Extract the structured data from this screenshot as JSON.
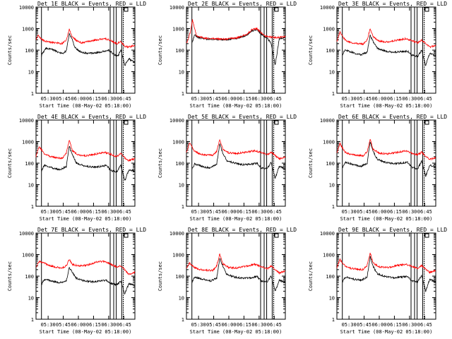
{
  "ylabel": "Counts/sec",
  "xlabel_prefix": "Start Time (08-May-02 05:18:00)",
  "x_ticks": [
    "05:30",
    "05:45",
    "06:00",
    "06:15",
    "06:30",
    "06:45"
  ],
  "y_ticks": [
    "1",
    "10",
    "100",
    "1000",
    "10000"
  ],
  "colors": {
    "events": "#000000",
    "lld": "#ff0000"
  },
  "chart_data": [
    {
      "type": "line",
      "title": "Det 1E BLACK = Events, RED = LLD",
      "ylim": [
        1,
        10000
      ],
      "yscale": "log",
      "xlabel": "Start Time (08-May-02 05:18:00)",
      "ylabel": "Counts/sec",
      "x_time_start": "05:18",
      "x_time_end": "06:56",
      "series": [
        {
          "name": "Events",
          "color": "#000000",
          "t": [
            5.4,
            6,
            10,
            15,
            18,
            22,
            26,
            30,
            33,
            36,
            38,
            40,
            45,
            52,
            60,
            68,
            72,
            78,
            80,
            82,
            84,
            88,
            92,
            96,
            98
          ],
          "values": [
            50,
            70,
            120,
            110,
            100,
            80,
            70,
            90,
            600,
            300,
            150,
            110,
            80,
            70,
            75,
            90,
            100,
            60,
            55,
            60,
            110,
            20,
            40,
            30,
            25
          ]
        },
        {
          "name": "LLD",
          "color": "#ff0000",
          "t": [
            0,
            2,
            6,
            10,
            15,
            20,
            26,
            30,
            33,
            36,
            40,
            45,
            52,
            60,
            68,
            72,
            76,
            80,
            84,
            88,
            92,
            96,
            98
          ],
          "values": [
            300,
            500,
            300,
            250,
            230,
            220,
            200,
            300,
            900,
            400,
            280,
            220,
            250,
            300,
            350,
            300,
            250,
            200,
            250,
            150,
            140,
            160,
            170
          ]
        }
      ]
    },
    {
      "type": "line",
      "title": "Det 2E BLACK = Events, RED = LLD",
      "ylim": [
        1,
        10000
      ],
      "yscale": "log",
      "xlabel": "Start Time (08-May-02 05:18:00)",
      "ylabel": "Counts/sec",
      "x_time_start": "05:18",
      "x_time_end": "06:56",
      "series": [
        {
          "name": "Events",
          "color": "#000000",
          "t": [
            5.4,
            8,
            12,
            20,
            30,
            40,
            50,
            60,
            65,
            70,
            72,
            78,
            80,
            84,
            88,
            92,
            96,
            98
          ],
          "values": [
            200,
            500,
            380,
            330,
            310,
            310,
            350,
            500,
            800,
            900,
            700,
            400,
            380,
            200,
            20,
            350,
            370,
            380
          ]
        },
        {
          "name": "LLD",
          "color": "#ff0000",
          "t": [
            0,
            4,
            6,
            10,
            20,
            30,
            40,
            50,
            60,
            65,
            70,
            72,
            78,
            82,
            88,
            92,
            96,
            98
          ],
          "values": [
            200,
            700,
            2500,
            450,
            350,
            330,
            330,
            370,
            550,
            900,
            1000,
            800,
            450,
            420,
            380,
            400,
            410,
            420
          ]
        }
      ]
    },
    {
      "type": "line",
      "title": "Det 3E BLACK = Events, RED = LLD",
      "ylim": [
        1,
        10000
      ],
      "yscale": "log",
      "xlabel": "Start Time (08-May-02 05:18:00)",
      "ylabel": "Counts/sec",
      "x_time_start": "05:18",
      "x_time_end": "06:56",
      "series": [
        {
          "name": "Events",
          "color": "#000000",
          "t": [
            5.4,
            8,
            12,
            18,
            24,
            30,
            33,
            36,
            40,
            48,
            56,
            64,
            70,
            74,
            80,
            84,
            88,
            92,
            96,
            98
          ],
          "values": [
            60,
            100,
            90,
            70,
            60,
            80,
            500,
            250,
            120,
            90,
            80,
            85,
            90,
            60,
            50,
            100,
            20,
            70,
            60,
            50
          ]
        },
        {
          "name": "LLD",
          "color": "#ff0000",
          "t": [
            0,
            3,
            8,
            14,
            20,
            26,
            30,
            33,
            36,
            42,
            50,
            60,
            68,
            74,
            80,
            84,
            88,
            92,
            96,
            98
          ],
          "values": [
            250,
            700,
            300,
            220,
            200,
            190,
            300,
            1000,
            400,
            260,
            240,
            290,
            340,
            280,
            220,
            300,
            200,
            140,
            160,
            170
          ]
        }
      ]
    },
    {
      "type": "line",
      "title": "Det 4E BLACK = Events, RED = LLD",
      "ylim": [
        1,
        10000
      ],
      "yscale": "log",
      "xlabel": "Start Time (08-May-02 05:18:00)",
      "ylabel": "Counts/sec",
      "x_time_start": "05:18",
      "x_time_end": "06:56",
      "series": [
        {
          "name": "Events",
          "color": "#000000",
          "t": [
            5.4,
            8,
            12,
            18,
            24,
            30,
            33,
            36,
            40,
            48,
            56,
            64,
            70,
            74,
            80,
            84,
            88,
            92,
            96,
            98
          ],
          "values": [
            40,
            80,
            70,
            55,
            50,
            70,
            600,
            250,
            100,
            75,
            65,
            70,
            80,
            45,
            40,
            80,
            15,
            50,
            45,
            40
          ]
        },
        {
          "name": "LLD",
          "color": "#ff0000",
          "t": [
            0,
            3,
            8,
            14,
            20,
            26,
            30,
            33,
            36,
            42,
            50,
            60,
            68,
            74,
            80,
            84,
            88,
            92,
            96,
            98
          ],
          "values": [
            200,
            600,
            280,
            200,
            180,
            170,
            280,
            1200,
            380,
            240,
            220,
            270,
            320,
            260,
            200,
            280,
            180,
            130,
            150,
            160
          ]
        }
      ]
    },
    {
      "type": "line",
      "title": "Det 5E BLACK = Events, RED = LLD",
      "ylim": [
        1,
        10000
      ],
      "yscale": "log",
      "xlabel": "Start Time (08-May-02 05:18:00)",
      "ylabel": "Counts/sec",
      "x_time_start": "05:18",
      "x_time_end": "06:56",
      "series": [
        {
          "name": "Events",
          "color": "#000000",
          "t": [
            5.4,
            8,
            12,
            18,
            24,
            30,
            33,
            36,
            40,
            48,
            56,
            64,
            70,
            74,
            80,
            84,
            88,
            92,
            96,
            98
          ],
          "values": [
            50,
            90,
            80,
            65,
            60,
            90,
            800,
            300,
            130,
            100,
            85,
            90,
            100,
            60,
            55,
            110,
            20,
            70,
            60,
            55
          ]
        },
        {
          "name": "LLD",
          "color": "#ff0000",
          "t": [
            0,
            3,
            8,
            14,
            20,
            26,
            30,
            33,
            36,
            42,
            50,
            60,
            68,
            74,
            80,
            84,
            88,
            92,
            96,
            98
          ],
          "values": [
            300,
            900,
            350,
            260,
            240,
            230,
            350,
            1300,
            450,
            300,
            280,
            330,
            380,
            310,
            250,
            330,
            220,
            160,
            180,
            190
          ]
        }
      ]
    },
    {
      "type": "line",
      "title": "Det 6E BLACK = Events, RED = LLD",
      "ylim": [
        1,
        10000
      ],
      "yscale": "log",
      "xlabel": "Start Time (08-May-02 05:18:00)",
      "ylabel": "Counts/sec",
      "x_time_start": "05:18",
      "x_time_end": "06:56",
      "series": [
        {
          "name": "Events",
          "color": "#000000",
          "t": [
            5.4,
            8,
            12,
            18,
            24,
            30,
            33,
            36,
            40,
            48,
            56,
            64,
            70,
            74,
            80,
            84,
            88,
            92,
            96,
            98
          ],
          "values": [
            60,
            110,
            100,
            80,
            70,
            100,
            1000,
            350,
            150,
            110,
            95,
            100,
            110,
            65,
            55,
            120,
            25,
            80,
            70,
            60
          ]
        },
        {
          "name": "LLD",
          "color": "#ff0000",
          "t": [
            0,
            3,
            8,
            14,
            20,
            26,
            30,
            33,
            36,
            42,
            50,
            60,
            68,
            74,
            80,
            84,
            88,
            92,
            96,
            98
          ],
          "values": [
            300,
            800,
            330,
            250,
            230,
            220,
            340,
            1300,
            430,
            290,
            270,
            320,
            370,
            300,
            240,
            320,
            210,
            150,
            170,
            180
          ]
        }
      ]
    },
    {
      "type": "line",
      "title": "Det 7E BLACK = Events, RED = LLD",
      "ylim": [
        1,
        10000
      ],
      "yscale": "log",
      "xlabel": "Start Time (08-May-02 05:18:00)",
      "ylabel": "Counts/sec",
      "x_time_start": "05:18",
      "x_time_end": "06:56",
      "series": [
        {
          "name": "Events",
          "color": "#000000",
          "t": [
            5.4,
            8,
            12,
            18,
            24,
            30,
            33,
            36,
            40,
            48,
            56,
            64,
            70,
            74,
            80,
            84,
            88,
            92,
            96,
            98
          ],
          "values": [
            40,
            70,
            65,
            55,
            50,
            60,
            250,
            150,
            80,
            60,
            55,
            60,
            65,
            45,
            40,
            60,
            15,
            45,
            40,
            35
          ]
        },
        {
          "name": "LLD",
          "color": "#ff0000",
          "t": [
            0,
            3,
            8,
            14,
            20,
            26,
            30,
            33,
            36,
            42,
            50,
            60,
            68,
            74,
            80,
            84,
            88,
            92,
            96,
            98
          ],
          "values": [
            250,
            500,
            400,
            300,
            260,
            240,
            300,
            600,
            350,
            300,
            320,
            450,
            500,
            350,
            270,
            300,
            200,
            120,
            140,
            150
          ]
        }
      ]
    },
    {
      "type": "line",
      "title": "Det 8E BLACK = Events, RED = LLD",
      "ylim": [
        1,
        10000
      ],
      "yscale": "log",
      "xlabel": "Start Time (08-May-02 05:18:00)",
      "ylabel": "Counts/sec",
      "x_time_start": "05:18",
      "x_time_end": "06:56",
      "series": [
        {
          "name": "Events",
          "color": "#000000",
          "t": [
            5.4,
            8,
            12,
            18,
            24,
            30,
            33,
            36,
            40,
            48,
            56,
            64,
            70,
            74,
            80,
            84,
            88,
            92,
            96,
            98
          ],
          "values": [
            50,
            90,
            80,
            70,
            60,
            80,
            700,
            300,
            120,
            90,
            80,
            85,
            95,
            60,
            55,
            100,
            20,
            65,
            55,
            50
          ]
        },
        {
          "name": "LLD",
          "color": "#ff0000",
          "t": [
            0,
            3,
            8,
            14,
            20,
            26,
            30,
            33,
            36,
            42,
            50,
            60,
            68,
            74,
            80,
            84,
            88,
            92,
            96,
            98
          ],
          "values": [
            220,
            400,
            250,
            200,
            190,
            180,
            300,
            1100,
            380,
            250,
            240,
            300,
            350,
            280,
            220,
            300,
            200,
            140,
            160,
            170
          ]
        }
      ]
    },
    {
      "type": "line",
      "title": "Det 9E BLACK = Events, RED = LLD",
      "ylim": [
        1,
        10000
      ],
      "yscale": "log",
      "xlabel": "Start Time (08-May-02 05:18:00)",
      "ylabel": "Counts/sec",
      "x_time_start": "05:18",
      "x_time_end": "06:56",
      "series": [
        {
          "name": "Events",
          "color": "#000000",
          "t": [
            5.4,
            8,
            12,
            18,
            24,
            30,
            33,
            36,
            40,
            48,
            56,
            64,
            70,
            74,
            80,
            84,
            88,
            92,
            96,
            98
          ],
          "values": [
            50,
            90,
            85,
            70,
            65,
            90,
            800,
            280,
            130,
            95,
            85,
            90,
            100,
            60,
            55,
            110,
            20,
            70,
            60,
            55
          ]
        },
        {
          "name": "LLD",
          "color": "#ff0000",
          "t": [
            0,
            3,
            8,
            14,
            20,
            26,
            30,
            33,
            36,
            42,
            50,
            60,
            68,
            74,
            80,
            84,
            88,
            92,
            96,
            98
          ],
          "values": [
            250,
            600,
            300,
            230,
            210,
            200,
            320,
            1200,
            400,
            270,
            250,
            310,
            360,
            290,
            230,
            310,
            210,
            150,
            170,
            180
          ]
        }
      ]
    }
  ]
}
